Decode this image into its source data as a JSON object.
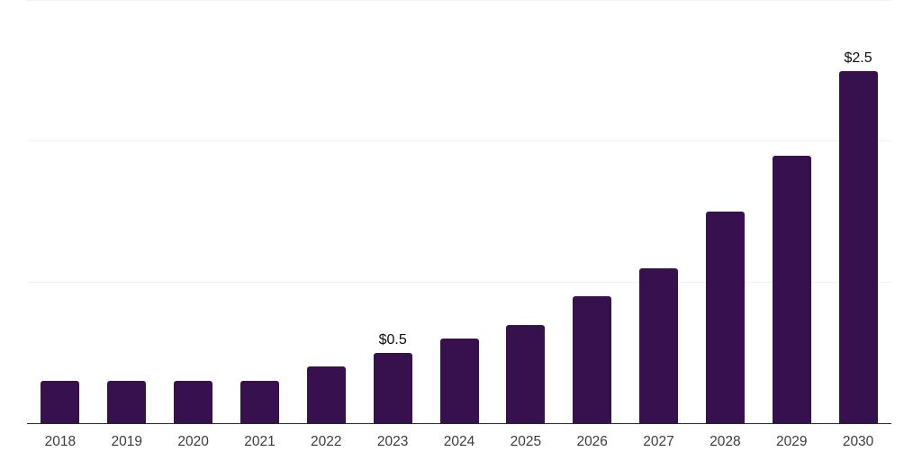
{
  "chart_data": {
    "type": "bar",
    "title": "",
    "xlabel": "",
    "ylabel": "",
    "categories": [
      "2018",
      "2019",
      "2020",
      "2021",
      "2022",
      "2023",
      "2024",
      "2025",
      "2026",
      "2027",
      "2028",
      "2029",
      "2030"
    ],
    "values": [
      0.3,
      0.3,
      0.3,
      0.3,
      0.4,
      0.5,
      0.6,
      0.7,
      0.9,
      1.1,
      1.5,
      1.9,
      2.5
    ],
    "data_labels": {
      "2023": "$0.5",
      "2030": "$2.5"
    },
    "ylim": [
      0,
      3
    ],
    "gridline_values": [
      1,
      2,
      3
    ],
    "grid": "horizontal-only",
    "legend": "none",
    "bar_color": "#36114d",
    "value_label_color": "#0d0d0d",
    "tick_label_color": "#3d3d3d",
    "gridline_color": "#f2f2f2",
    "axis_line_color": "#2b2b2b",
    "background_color": "#ffffff"
  }
}
